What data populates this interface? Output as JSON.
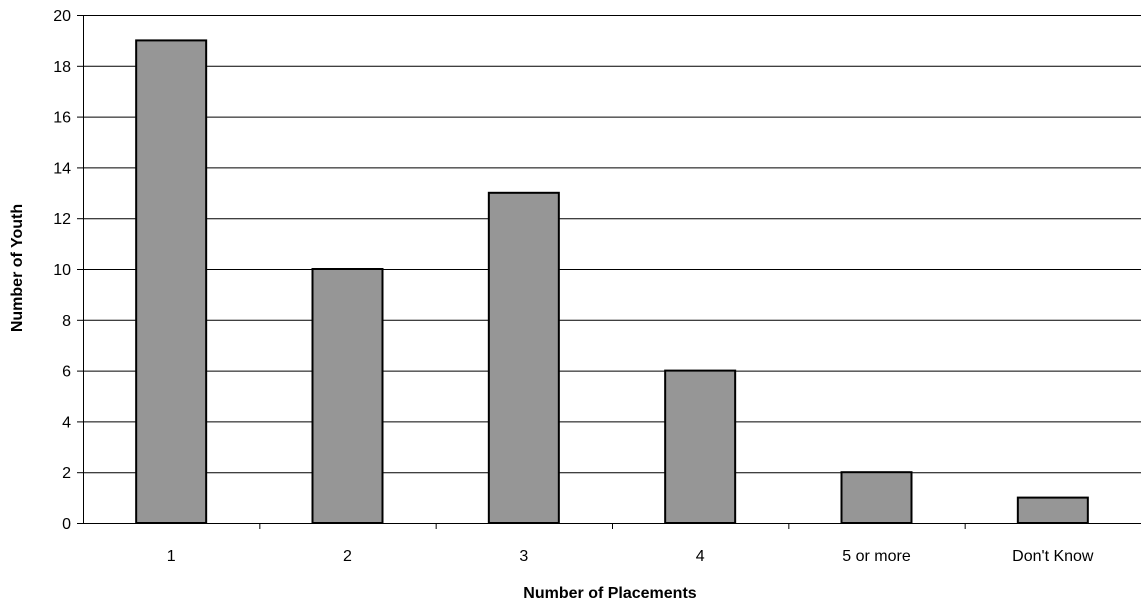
{
  "chart_data": {
    "type": "bar",
    "title": "",
    "xlabel": "Number of Placements",
    "ylabel": "Number of Youth",
    "categories": [
      "1",
      "2",
      "3",
      "4",
      "5 or more",
      "Don't Know"
    ],
    "values": [
      19,
      10,
      13,
      6,
      2,
      1
    ],
    "ylim": [
      0,
      20
    ],
    "yticks": [
      0,
      2,
      4,
      6,
      8,
      10,
      12,
      14,
      16,
      18,
      20
    ],
    "grid": true,
    "legend": "none",
    "colors": {
      "bar": "#969696",
      "grid": "#000000"
    }
  }
}
